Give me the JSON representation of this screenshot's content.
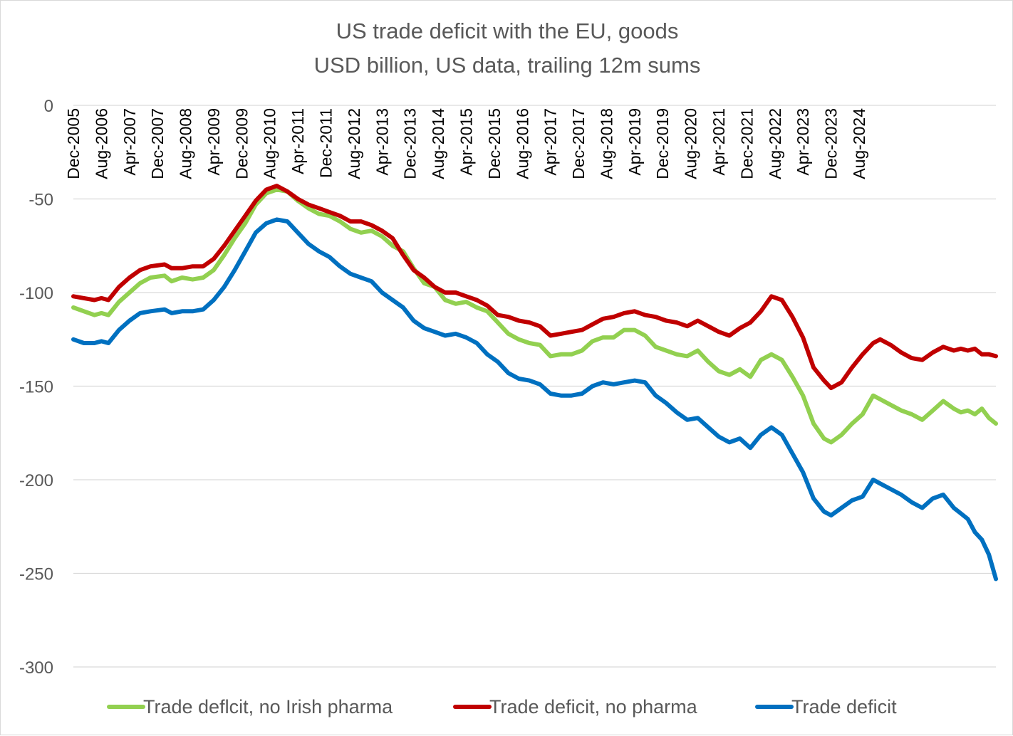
{
  "chart_data": {
    "type": "line",
    "title": "US trade deficit with the EU, goods",
    "subtitle": "USD billion, US data, trailing 12m sums",
    "xlabel": "",
    "ylabel": "",
    "ylim": [
      -300,
      0
    ],
    "yticks": [
      0,
      -50,
      -100,
      -150,
      -200,
      -250,
      -300
    ],
    "ytick_labels": [
      "0",
      "-50",
      "-100",
      "-150",
      "-200",
      "-250",
      "-300"
    ],
    "grid": true,
    "legend_position": "bottom",
    "x_start": "Dec-2005",
    "x_end": "Mar-2025",
    "months": 232,
    "x_tick_labels": [
      "Dec-2005",
      "Aug-2006",
      "Apr-2007",
      "Dec-2007",
      "Aug-2008",
      "Apr-2009",
      "Dec-2009",
      "Aug-2010",
      "Apr-2011",
      "Dec-2011",
      "Aug-2012",
      "Apr-2013",
      "Dec-2013",
      "Aug-2014",
      "Apr-2015",
      "Dec-2015",
      "Aug-2016",
      "Apr-2017",
      "Dec-2017",
      "Aug-2018",
      "Apr-2019",
      "Dec-2019",
      "Aug-2020",
      "Apr-2021",
      "Dec-2021",
      "Aug-2022",
      "Apr-2023",
      "Dec-2023",
      "Aug-2024"
    ],
    "series": [
      {
        "name": "Trade deflcit, no Irish pharma",
        "color": "#92d050",
        "points": [
          [
            0,
            -108
          ],
          [
            3,
            -110
          ],
          [
            6,
            -112
          ],
          [
            8,
            -111
          ],
          [
            10,
            -112
          ],
          [
            13,
            -105
          ],
          [
            16,
            -100
          ],
          [
            19,
            -95
          ],
          [
            22,
            -92
          ],
          [
            26,
            -91
          ],
          [
            28,
            -94
          ],
          [
            31,
            -92
          ],
          [
            34,
            -93
          ],
          [
            37,
            -92
          ],
          [
            40,
            -88
          ],
          [
            43,
            -80
          ],
          [
            46,
            -71
          ],
          [
            49,
            -63
          ],
          [
            52,
            -53
          ],
          [
            55,
            -47
          ],
          [
            58,
            -45
          ],
          [
            61,
            -46
          ],
          [
            64,
            -51
          ],
          [
            67,
            -55
          ],
          [
            70,
            -58
          ],
          [
            73,
            -59
          ],
          [
            76,
            -62
          ],
          [
            79,
            -66
          ],
          [
            82,
            -68
          ],
          [
            85,
            -67
          ],
          [
            88,
            -70
          ],
          [
            91,
            -75
          ],
          [
            94,
            -78
          ],
          [
            97,
            -87
          ],
          [
            100,
            -95
          ],
          [
            103,
            -97
          ],
          [
            106,
            -104
          ],
          [
            109,
            -106
          ],
          [
            112,
            -105
          ],
          [
            115,
            -108
          ],
          [
            118,
            -110
          ],
          [
            121,
            -116
          ],
          [
            124,
            -122
          ],
          [
            127,
            -125
          ],
          [
            130,
            -127
          ],
          [
            133,
            -128
          ],
          [
            136,
            -134
          ],
          [
            139,
            -133
          ],
          [
            142,
            -133
          ],
          [
            145,
            -131
          ],
          [
            148,
            -126
          ],
          [
            151,
            -124
          ],
          [
            154,
            -124
          ],
          [
            157,
            -120
          ],
          [
            160,
            -120
          ],
          [
            163,
            -123
          ],
          [
            166,
            -129
          ],
          [
            169,
            -131
          ],
          [
            172,
            -133
          ],
          [
            175,
            -134
          ],
          [
            178,
            -131
          ],
          [
            181,
            -137
          ],
          [
            184,
            -142
          ],
          [
            187,
            -144
          ],
          [
            190,
            -141
          ],
          [
            193,
            -145
          ],
          [
            196,
            -136
          ],
          [
            199,
            -133
          ],
          [
            202,
            -136
          ],
          [
            205,
            -145
          ],
          [
            208,
            -155
          ],
          [
            211,
            -170
          ],
          [
            214,
            -178
          ],
          [
            216,
            -180
          ],
          [
            219,
            -176
          ],
          [
            222,
            -170
          ],
          [
            225,
            -165
          ],
          [
            228,
            -155
          ],
          [
            230,
            -157
          ],
          [
            233,
            -160
          ],
          [
            236,
            -163
          ],
          [
            239,
            -165
          ],
          [
            242,
            -168
          ],
          [
            245,
            -163
          ],
          [
            248,
            -158
          ],
          [
            251,
            -162
          ],
          [
            253,
            -164
          ],
          [
            255,
            -163
          ],
          [
            257,
            -165
          ],
          [
            259,
            -162
          ],
          [
            261,
            -167
          ],
          [
            263,
            -170
          ]
        ]
      },
      {
        "name": "Trade deficit, no pharma",
        "color": "#c00000",
        "points": [
          [
            0,
            -102
          ],
          [
            3,
            -103
          ],
          [
            6,
            -104
          ],
          [
            8,
            -103
          ],
          [
            10,
            -104
          ],
          [
            13,
            -97
          ],
          [
            16,
            -92
          ],
          [
            19,
            -88
          ],
          [
            22,
            -86
          ],
          [
            26,
            -85
          ],
          [
            28,
            -87
          ],
          [
            31,
            -87
          ],
          [
            34,
            -86
          ],
          [
            37,
            -86
          ],
          [
            40,
            -82
          ],
          [
            43,
            -75
          ],
          [
            46,
            -67
          ],
          [
            49,
            -59
          ],
          [
            52,
            -51
          ],
          [
            55,
            -45
          ],
          [
            58,
            -43
          ],
          [
            61,
            -46
          ],
          [
            64,
            -50
          ],
          [
            67,
            -53
          ],
          [
            70,
            -55
          ],
          [
            73,
            -57
          ],
          [
            76,
            -59
          ],
          [
            79,
            -62
          ],
          [
            82,
            -62
          ],
          [
            85,
            -64
          ],
          [
            88,
            -67
          ],
          [
            91,
            -71
          ],
          [
            94,
            -80
          ],
          [
            97,
            -88
          ],
          [
            100,
            -92
          ],
          [
            103,
            -97
          ],
          [
            106,
            -100
          ],
          [
            109,
            -100
          ],
          [
            112,
            -102
          ],
          [
            115,
            -104
          ],
          [
            118,
            -107
          ],
          [
            121,
            -112
          ],
          [
            124,
            -113
          ],
          [
            127,
            -115
          ],
          [
            130,
            -116
          ],
          [
            133,
            -118
          ],
          [
            136,
            -123
          ],
          [
            139,
            -122
          ],
          [
            142,
            -121
          ],
          [
            145,
            -120
          ],
          [
            148,
            -117
          ],
          [
            151,
            -114
          ],
          [
            154,
            -113
          ],
          [
            157,
            -111
          ],
          [
            160,
            -110
          ],
          [
            163,
            -112
          ],
          [
            166,
            -113
          ],
          [
            169,
            -115
          ],
          [
            172,
            -116
          ],
          [
            175,
            -118
          ],
          [
            178,
            -115
          ],
          [
            181,
            -118
          ],
          [
            184,
            -121
          ],
          [
            187,
            -123
          ],
          [
            190,
            -119
          ],
          [
            193,
            -116
          ],
          [
            196,
            -110
          ],
          [
            199,
            -102
          ],
          [
            202,
            -104
          ],
          [
            205,
            -113
          ],
          [
            208,
            -124
          ],
          [
            211,
            -140
          ],
          [
            214,
            -147
          ],
          [
            216,
            -151
          ],
          [
            219,
            -148
          ],
          [
            222,
            -140
          ],
          [
            225,
            -133
          ],
          [
            228,
            -127
          ],
          [
            230,
            -125
          ],
          [
            233,
            -128
          ],
          [
            236,
            -132
          ],
          [
            239,
            -135
          ],
          [
            242,
            -136
          ],
          [
            245,
            -132
          ],
          [
            248,
            -129
          ],
          [
            251,
            -131
          ],
          [
            253,
            -130
          ],
          [
            255,
            -131
          ],
          [
            257,
            -130
          ],
          [
            259,
            -133
          ],
          [
            261,
            -133
          ],
          [
            263,
            -134
          ]
        ]
      },
      {
        "name": "Trade deficit",
        "color": "#0070c0",
        "points": [
          [
            0,
            -125
          ],
          [
            3,
            -127
          ],
          [
            6,
            -127
          ],
          [
            8,
            -126
          ],
          [
            10,
            -127
          ],
          [
            13,
            -120
          ],
          [
            16,
            -115
          ],
          [
            19,
            -111
          ],
          [
            22,
            -110
          ],
          [
            26,
            -109
          ],
          [
            28,
            -111
          ],
          [
            31,
            -110
          ],
          [
            34,
            -110
          ],
          [
            37,
            -109
          ],
          [
            40,
            -104
          ],
          [
            43,
            -97
          ],
          [
            46,
            -88
          ],
          [
            49,
            -78
          ],
          [
            52,
            -68
          ],
          [
            55,
            -63
          ],
          [
            58,
            -61
          ],
          [
            61,
            -62
          ],
          [
            64,
            -68
          ],
          [
            67,
            -74
          ],
          [
            70,
            -78
          ],
          [
            73,
            -81
          ],
          [
            76,
            -86
          ],
          [
            79,
            -90
          ],
          [
            82,
            -92
          ],
          [
            85,
            -94
          ],
          [
            88,
            -100
          ],
          [
            91,
            -104
          ],
          [
            94,
            -108
          ],
          [
            97,
            -115
          ],
          [
            100,
            -119
          ],
          [
            103,
            -121
          ],
          [
            106,
            -123
          ],
          [
            109,
            -122
          ],
          [
            112,
            -124
          ],
          [
            115,
            -127
          ],
          [
            118,
            -133
          ],
          [
            121,
            -137
          ],
          [
            124,
            -143
          ],
          [
            127,
            -146
          ],
          [
            130,
            -147
          ],
          [
            133,
            -149
          ],
          [
            136,
            -154
          ],
          [
            139,
            -155
          ],
          [
            142,
            -155
          ],
          [
            145,
            -154
          ],
          [
            148,
            -150
          ],
          [
            151,
            -148
          ],
          [
            154,
            -149
          ],
          [
            157,
            -148
          ],
          [
            160,
            -147
          ],
          [
            163,
            -148
          ],
          [
            166,
            -155
          ],
          [
            169,
            -159
          ],
          [
            172,
            -164
          ],
          [
            175,
            -168
          ],
          [
            178,
            -167
          ],
          [
            181,
            -172
          ],
          [
            184,
            -177
          ],
          [
            187,
            -180
          ],
          [
            190,
            -178
          ],
          [
            193,
            -183
          ],
          [
            196,
            -176
          ],
          [
            199,
            -172
          ],
          [
            202,
            -176
          ],
          [
            205,
            -186
          ],
          [
            208,
            -196
          ],
          [
            211,
            -210
          ],
          [
            214,
            -217
          ],
          [
            216,
            -219
          ],
          [
            219,
            -215
          ],
          [
            222,
            -211
          ],
          [
            225,
            -209
          ],
          [
            228,
            -200
          ],
          [
            230,
            -202
          ],
          [
            233,
            -205
          ],
          [
            236,
            -208
          ],
          [
            239,
            -212
          ],
          [
            242,
            -215
          ],
          [
            245,
            -210
          ],
          [
            248,
            -208
          ],
          [
            251,
            -215
          ],
          [
            253,
            -218
          ],
          [
            255,
            -221
          ],
          [
            257,
            -228
          ],
          [
            259,
            -232
          ],
          [
            261,
            -240
          ],
          [
            263,
            -253
          ]
        ]
      }
    ]
  }
}
